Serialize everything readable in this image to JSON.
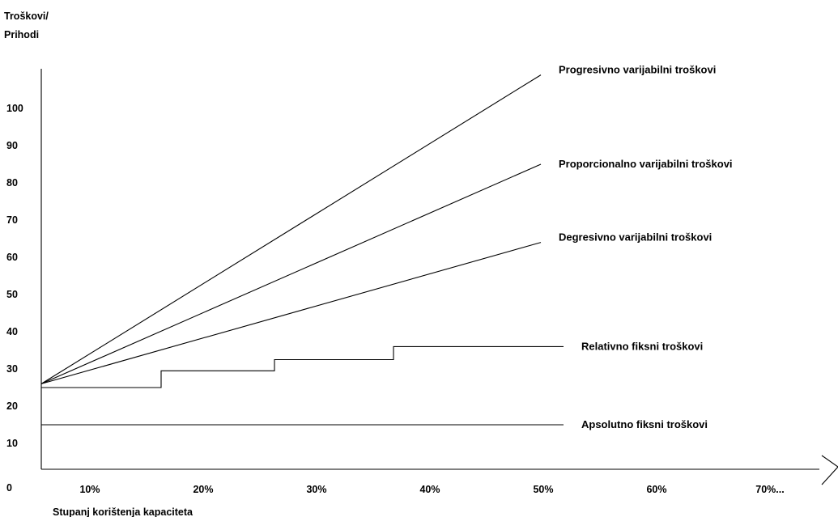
{
  "chart_data": {
    "type": "line",
    "ylabel_lines": [
      "Troškovi/",
      "Prihodi"
    ],
    "xlabel": "Stupanj korištenja kapaciteta",
    "origin_label": "0",
    "y_ticks": [
      10,
      20,
      30,
      40,
      50,
      60,
      70,
      80,
      90,
      100
    ],
    "x_tick_labels": [
      "10%",
      "20%",
      "30%",
      "40%",
      "50%",
      "60%",
      "70%..."
    ],
    "x_tick_values": [
      10,
      20,
      30,
      40,
      50,
      60,
      70
    ],
    "xlim": [
      6,
      80
    ],
    "ylim": [
      0,
      112
    ],
    "grid": false,
    "series": [
      {
        "name": "Progresivno varijabilni troškovi",
        "points": [
          [
            5,
            26
          ],
          [
            50,
            109
          ]
        ]
      },
      {
        "name": "Proporcionalno varijabilni troškovi",
        "points": [
          [
            5,
            26
          ],
          [
            50,
            85
          ]
        ]
      },
      {
        "name": "Degresivno varijabilni troškovi",
        "points": [
          [
            5,
            26
          ],
          [
            50,
            64
          ]
        ]
      },
      {
        "name": "Relativno fiksni troškovi",
        "step": true,
        "points": [
          [
            5,
            25
          ],
          [
            16.5,
            25
          ],
          [
            16.5,
            29.5
          ],
          [
            26.5,
            29.5
          ],
          [
            26.5,
            32.5
          ],
          [
            37,
            32.5
          ],
          [
            37,
            36
          ],
          [
            52,
            36
          ]
        ]
      },
      {
        "name": "Apsolutno fiksni troškovi",
        "points": [
          [
            5,
            15
          ],
          [
            52,
            15
          ]
        ]
      }
    ]
  }
}
